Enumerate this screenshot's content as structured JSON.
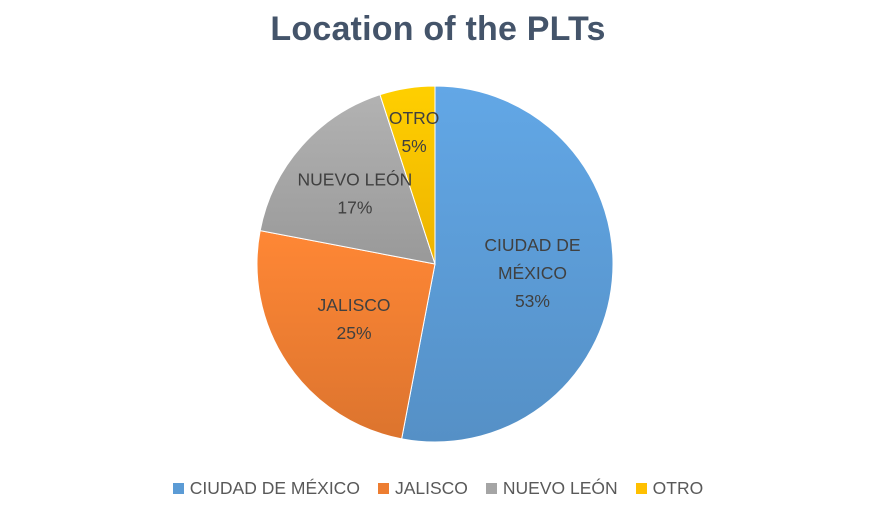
{
  "chart_data": {
    "type": "pie",
    "title": "Location of the PLTs",
    "slices": [
      {
        "name": "CIUDAD DE MÉXICO",
        "label_lines": [
          "CIUDAD DE",
          "MÉXICO"
        ],
        "value": 53,
        "percent_label": "53%",
        "color": "#5b9bd5"
      },
      {
        "name": "JALISCO",
        "label_lines": [
          "JALISCO"
        ],
        "value": 25,
        "percent_label": "25%",
        "color": "#ed7d31"
      },
      {
        "name": "NUEVO LEÓN",
        "label_lines": [
          "NUEVO LEÓN"
        ],
        "value": 17,
        "percent_label": "17%",
        "color": "#a5a5a5"
      },
      {
        "name": "OTRO",
        "label_lines": [
          "OTRO"
        ],
        "value": 5,
        "percent_label": "5%",
        "color": "#ffc000"
      }
    ],
    "start_angle": "12 o'clock",
    "direction": "clockwise",
    "legend_position": "bottom"
  }
}
